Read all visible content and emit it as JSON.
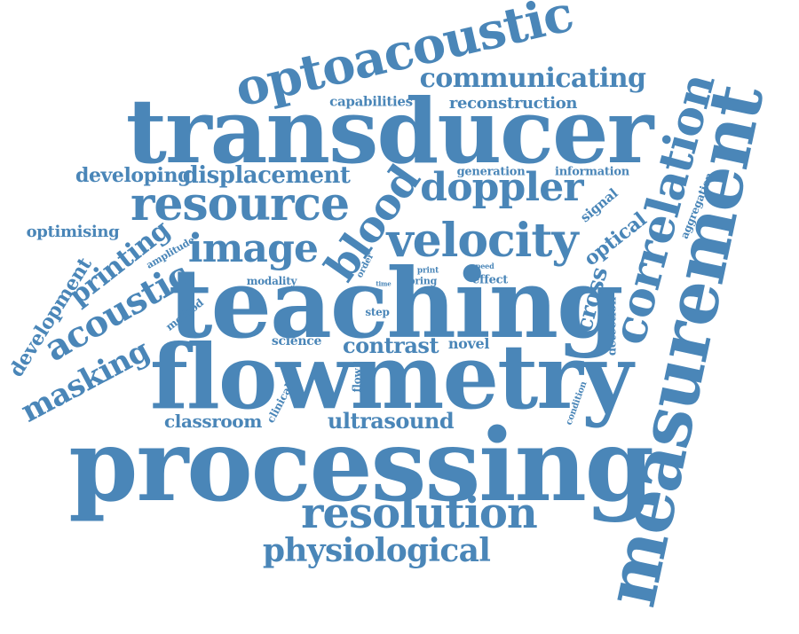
{
  "color": "#4a86b8",
  "words": [
    "transducer",
    "teaching",
    "flowmetry",
    "processing",
    "measurement",
    "optoacoustic",
    "correlation",
    "velocity",
    "resource",
    "resolution",
    "doppler",
    "image",
    "acoustic",
    "blood",
    "physiological",
    "communicating",
    "displacement",
    "developing",
    "masking",
    "printing",
    "development",
    "contrast",
    "ultrasound",
    "classroom",
    "reconstruction",
    "cross",
    "optical",
    "optimising",
    "capabilities",
    "signal",
    "generation",
    "information",
    "novel",
    "science",
    "detection",
    "aggregation",
    "method",
    "amplitude",
    "flow",
    "clinical",
    "modality",
    "effect",
    "step",
    "order",
    "bring",
    "print",
    "speed",
    "time",
    "condition"
  ]
}
